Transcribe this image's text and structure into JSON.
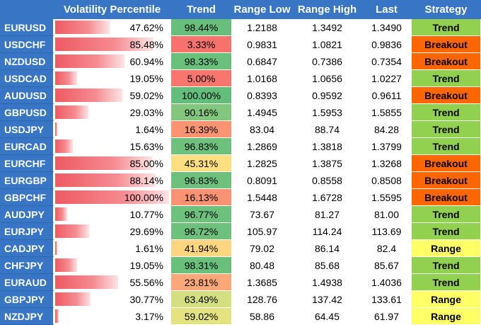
{
  "headers": {
    "pair": "",
    "volatility": "Volatility Percentile",
    "trend": "Trend",
    "range_low": "Range Low",
    "range_high": "Range High",
    "last": "Last",
    "strategy": "Strategy"
  },
  "colors": {
    "header_blue": "#3875c4",
    "trend_green": "#63be7b",
    "trend_yellow": "#ffeb84",
    "trend_red": "#f8696b",
    "vol_bar": "#ee5a62",
    "strategy_trend": "#92d050",
    "strategy_breakout": "#ff6600",
    "strategy_range": "#ffff66"
  },
  "rows": [
    {
      "pair": "EURUSD",
      "vol_label": "47.62%",
      "vol": 47.62,
      "trend_label": "98.44%",
      "trend": 98.44,
      "low": "1.2188",
      "high": "1.3492",
      "last": "1.3490",
      "strategy": "Trend"
    },
    {
      "pair": "USDCHF",
      "vol_label": "85.48%",
      "vol": 85.48,
      "trend_label": "3.33%",
      "trend": 3.33,
      "low": "0.9831",
      "high": "1.0821",
      "last": "0.9836",
      "strategy": "Breakout"
    },
    {
      "pair": "NZDUSD",
      "vol_label": "60.94%",
      "vol": 60.94,
      "trend_label": "98.33%",
      "trend": 98.33,
      "low": "0.6847",
      "high": "0.7386",
      "last": "0.7354",
      "strategy": "Breakout"
    },
    {
      "pair": "USDCAD",
      "vol_label": "19.05%",
      "vol": 19.05,
      "trend_label": "5.00%",
      "trend": 5.0,
      "low": "1.0168",
      "high": "1.0656",
      "last": "1.0227",
      "strategy": "Trend"
    },
    {
      "pair": "AUDUSD",
      "vol_label": "59.02%",
      "vol": 59.02,
      "trend_label": "100.00%",
      "trend": 100.0,
      "low": "0.8393",
      "high": "0.9592",
      "last": "0.9611",
      "strategy": "Breakout"
    },
    {
      "pair": "GBPUSD",
      "vol_label": "29.03%",
      "vol": 29.03,
      "trend_label": "90.16%",
      "trend": 90.16,
      "low": "1.4945",
      "high": "1.5953",
      "last": "1.5855",
      "strategy": "Trend"
    },
    {
      "pair": "USDJPY",
      "vol_label": "1.64%",
      "vol": 1.64,
      "trend_label": "16.39%",
      "trend": 16.39,
      "low": "83.04",
      "high": "88.74",
      "last": "84.28",
      "strategy": "Trend"
    },
    {
      "pair": "EURCAD",
      "vol_label": "15.63%",
      "vol": 15.63,
      "trend_label": "96.83%",
      "trend": 96.83,
      "low": "1.2869",
      "high": "1.3818",
      "last": "1.3799",
      "strategy": "Trend"
    },
    {
      "pair": "EURCHF",
      "vol_label": "85.00%",
      "vol": 85.0,
      "trend_label": "45.31%",
      "trend": 45.31,
      "low": "1.2825",
      "high": "1.3875",
      "last": "1.3268",
      "strategy": "Breakout"
    },
    {
      "pair": "EURGBP",
      "vol_label": "88.14%",
      "vol": 88.14,
      "trend_label": "96.83%",
      "trend": 96.83,
      "low": "0.8091",
      "high": "0.8558",
      "last": "0.8508",
      "strategy": "Breakout"
    },
    {
      "pair": "GBPCHF",
      "vol_label": "100.00%",
      "vol": 100.0,
      "trend_label": "16.13%",
      "trend": 16.13,
      "low": "1.5448",
      "high": "1.6728",
      "last": "1.5595",
      "strategy": "Breakout"
    },
    {
      "pair": "AUDJPY",
      "vol_label": "10.77%",
      "vol": 10.77,
      "trend_label": "96.77%",
      "trend": 96.77,
      "low": "73.67",
      "high": "81.27",
      "last": "81.00",
      "strategy": "Trend"
    },
    {
      "pair": "EURJPY",
      "vol_label": "29.69%",
      "vol": 29.69,
      "trend_label": "96.72%",
      "trend": 96.72,
      "low": "105.97",
      "high": "114.24",
      "last": "113.69",
      "strategy": "Trend"
    },
    {
      "pair": "CADJPY",
      "vol_label": "1.61%",
      "vol": 1.61,
      "trend_label": "41.94%",
      "trend": 41.94,
      "low": "79.02",
      "high": "86.14",
      "last": "82.4",
      "strategy": "Range"
    },
    {
      "pair": "CHFJPY",
      "vol_label": "19.05%",
      "vol": 19.05,
      "trend_label": "98.31%",
      "trend": 98.31,
      "low": "80.48",
      "high": "85.68",
      "last": "85.67",
      "strategy": "Trend"
    },
    {
      "pair": "EURAUD",
      "vol_label": "55.56%",
      "vol": 55.56,
      "trend_label": "23.81%",
      "trend": 23.81,
      "low": "1.3685",
      "high": "1.4938",
      "last": "1.4036",
      "strategy": "Trend"
    },
    {
      "pair": "GBPJPY",
      "vol_label": "30.77%",
      "vol": 30.77,
      "trend_label": "63.49%",
      "trend": 63.49,
      "low": "128.76",
      "high": "137.42",
      "last": "133.61",
      "strategy": "Range"
    },
    {
      "pair": "NZDJPY",
      "vol_label": "3.17%",
      "vol": 3.17,
      "trend_label": "59.02%",
      "trend": 59.02,
      "low": "58.86",
      "high": "64.45",
      "last": "61.97",
      "strategy": "Range"
    }
  ]
}
